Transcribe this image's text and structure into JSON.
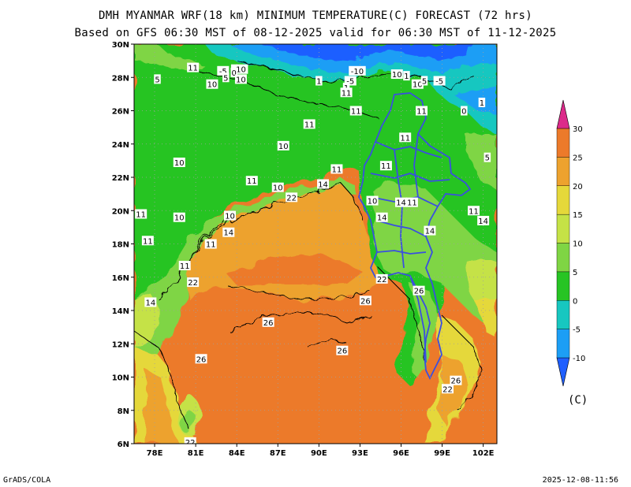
{
  "header": {
    "title_line1": "DMH MYANMAR WRF(18 km) MINIMUM TEMPERATURE(C) FORECAST (72 hrs)",
    "title_line2": "Based on GFS 06:30 MST of 08-12-2025 valid for 06:30 MST of 11-12-2025"
  },
  "footer": {
    "software": "GrADS/COLA",
    "timestamp": "2025-12-08-11:56"
  },
  "axes": {
    "lat_labels": [
      "30N",
      "28N",
      "26N",
      "24N",
      "22N",
      "20N",
      "18N",
      "16N",
      "14N",
      "12N",
      "10N",
      "8N",
      "6N"
    ],
    "lat_values": [
      30,
      28,
      26,
      24,
      22,
      20,
      18,
      16,
      14,
      12,
      10,
      8,
      6
    ],
    "lon_labels": [
      "78E",
      "81E",
      "84E",
      "87E",
      "90E",
      "93E",
      "96E",
      "99E",
      "102E"
    ],
    "lon_values": [
      78,
      81,
      84,
      87,
      90,
      93,
      96,
      99,
      102
    ],
    "lon_range": [
      76.5,
      103
    ],
    "lat_range": [
      6,
      30
    ]
  },
  "colorbar": {
    "unit": "(C)",
    "labels": [
      "-10",
      "-5",
      "0",
      "5",
      "10",
      "15",
      "20",
      "25",
      "30"
    ],
    "colors": [
      "#1f5fff",
      "#1c9ef5",
      "#17c7c0",
      "#27c424",
      "#7fd544",
      "#c5e246",
      "#e5d83a",
      "#eda22e",
      "#ec7a2a",
      "#dc2a8a"
    ]
  },
  "contour_labels": [
    {
      "text": "11",
      "lon": 80.8,
      "lat": 28.6
    },
    {
      "text": "5",
      "lon": 78.2,
      "lat": 27.9
    },
    {
      "text": "-5",
      "lon": 83.0,
      "lat": 28.4
    },
    {
      "text": "-10",
      "lon": 84.2,
      "lat": 28.5
    },
    {
      "text": "5",
      "lon": 83.2,
      "lat": 28.0
    },
    {
      "text": "0",
      "lon": 83.8,
      "lat": 28.3
    },
    {
      "text": "10",
      "lon": 82.2,
      "lat": 27.6
    },
    {
      "text": "10",
      "lon": 84.3,
      "lat": 27.9
    },
    {
      "text": "-10",
      "lon": 92.8,
      "lat": 28.4
    },
    {
      "text": "1",
      "lon": 90.0,
      "lat": 27.8
    },
    {
      "text": "-5",
      "lon": 92.3,
      "lat": 27.8
    },
    {
      "text": "1",
      "lon": 92.0,
      "lat": 27.4
    },
    {
      "text": "11",
      "lon": 92.0,
      "lat": 27.1
    },
    {
      "text": "10",
      "lon": 95.7,
      "lat": 28.2
    },
    {
      "text": "1",
      "lon": 96.4,
      "lat": 28.1
    },
    {
      "text": "10",
      "lon": 97.2,
      "lat": 27.6
    },
    {
      "text": "5",
      "lon": 97.7,
      "lat": 27.8
    },
    {
      "text": "-5",
      "lon": 98.8,
      "lat": 27.8
    },
    {
      "text": "1",
      "lon": 101.9,
      "lat": 26.5
    },
    {
      "text": "0",
      "lon": 100.6,
      "lat": 26.0
    },
    {
      "text": "11",
      "lon": 92.7,
      "lat": 26.0
    },
    {
      "text": "11",
      "lon": 97.5,
      "lat": 26.0
    },
    {
      "text": "11",
      "lon": 89.3,
      "lat": 25.2
    },
    {
      "text": "11",
      "lon": 96.3,
      "lat": 24.4
    },
    {
      "text": "10",
      "lon": 87.4,
      "lat": 23.9
    },
    {
      "text": "11",
      "lon": 91.3,
      "lat": 22.5
    },
    {
      "text": "10",
      "lon": 79.8,
      "lat": 22.9
    },
    {
      "text": "11",
      "lon": 85.1,
      "lat": 21.8
    },
    {
      "text": "10",
      "lon": 87.0,
      "lat": 21.4
    },
    {
      "text": "14",
      "lon": 90.3,
      "lat": 21.6
    },
    {
      "text": "11",
      "lon": 94.9,
      "lat": 22.7
    },
    {
      "text": "5",
      "lon": 102.3,
      "lat": 23.2
    },
    {
      "text": "22",
      "lon": 88.0,
      "lat": 20.8
    },
    {
      "text": "10",
      "lon": 93.9,
      "lat": 20.6
    },
    {
      "text": "14",
      "lon": 96.0,
      "lat": 20.5
    },
    {
      "text": "11",
      "lon": 96.8,
      "lat": 20.5
    },
    {
      "text": "11",
      "lon": 101.3,
      "lat": 20.0
    },
    {
      "text": "11",
      "lon": 77.0,
      "lat": 19.8
    },
    {
      "text": "10",
      "lon": 79.8,
      "lat": 19.6
    },
    {
      "text": "10",
      "lon": 83.5,
      "lat": 19.7
    },
    {
      "text": "14",
      "lon": 94.6,
      "lat": 19.6
    },
    {
      "text": "14",
      "lon": 102.0,
      "lat": 19.4
    },
    {
      "text": "11",
      "lon": 77.5,
      "lat": 18.2
    },
    {
      "text": "14",
      "lon": 83.4,
      "lat": 18.7
    },
    {
      "text": "11",
      "lon": 82.1,
      "lat": 18.0
    },
    {
      "text": "14",
      "lon": 98.1,
      "lat": 18.8
    },
    {
      "text": "11",
      "lon": 80.2,
      "lat": 16.7
    },
    {
      "text": "22",
      "lon": 80.8,
      "lat": 15.7
    },
    {
      "text": "22",
      "lon": 94.6,
      "lat": 15.9
    },
    {
      "text": "26",
      "lon": 97.3,
      "lat": 15.2
    },
    {
      "text": "14",
      "lon": 77.7,
      "lat": 14.5
    },
    {
      "text": "26",
      "lon": 93.4,
      "lat": 14.6
    },
    {
      "text": "26",
      "lon": 86.3,
      "lat": 13.3
    },
    {
      "text": "26",
      "lon": 91.7,
      "lat": 11.6
    },
    {
      "text": "26",
      "lon": 81.4,
      "lat": 11.1
    },
    {
      "text": "26",
      "lon": 100.0,
      "lat": 9.8
    },
    {
      "text": "22",
      "lon": 99.4,
      "lat": 9.3
    },
    {
      "text": "22",
      "lon": 80.6,
      "lat": 6.1
    }
  ]
}
